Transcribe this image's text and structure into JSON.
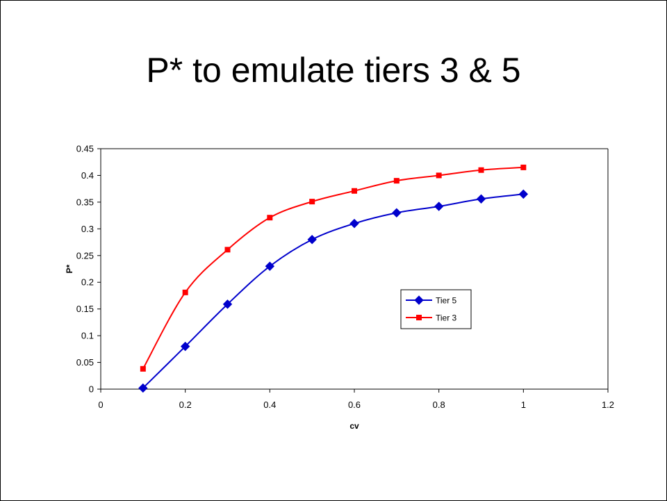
{
  "slide": {
    "title": "P* to emulate tiers 3 & 5"
  },
  "chart_data": {
    "type": "line",
    "title": "",
    "xlabel": "cv",
    "ylabel": "P*",
    "xlim": [
      0,
      1.2
    ],
    "ylim": [
      0,
      0.45
    ],
    "xticks": [
      "0",
      "0.2",
      "0.4",
      "0.6",
      "0.8",
      "1",
      "1.2"
    ],
    "yticks": [
      "0",
      "0.05",
      "0.1",
      "0.15",
      "0.2",
      "0.25",
      "0.3",
      "0.35",
      "0.4",
      "0.45"
    ],
    "grid": false,
    "legend_position": "center-right",
    "series": [
      {
        "name": "Tier 5",
        "color": "#0000cc",
        "marker": "diamond",
        "x": [
          0.1,
          0.2,
          0.3,
          0.4,
          0.5,
          0.6,
          0.7,
          0.8,
          0.9,
          1.0
        ],
        "y": [
          0.002,
          0.08,
          0.159,
          0.23,
          0.28,
          0.31,
          0.33,
          0.342,
          0.356,
          0.365
        ]
      },
      {
        "name": "Tier 3",
        "color": "#ff0000",
        "marker": "square",
        "x": [
          0.1,
          0.2,
          0.3,
          0.4,
          0.5,
          0.6,
          0.7,
          0.8,
          0.9,
          1.0
        ],
        "y": [
          0.038,
          0.181,
          0.261,
          0.321,
          0.351,
          0.371,
          0.39,
          0.4,
          0.41,
          0.415
        ]
      }
    ]
  }
}
